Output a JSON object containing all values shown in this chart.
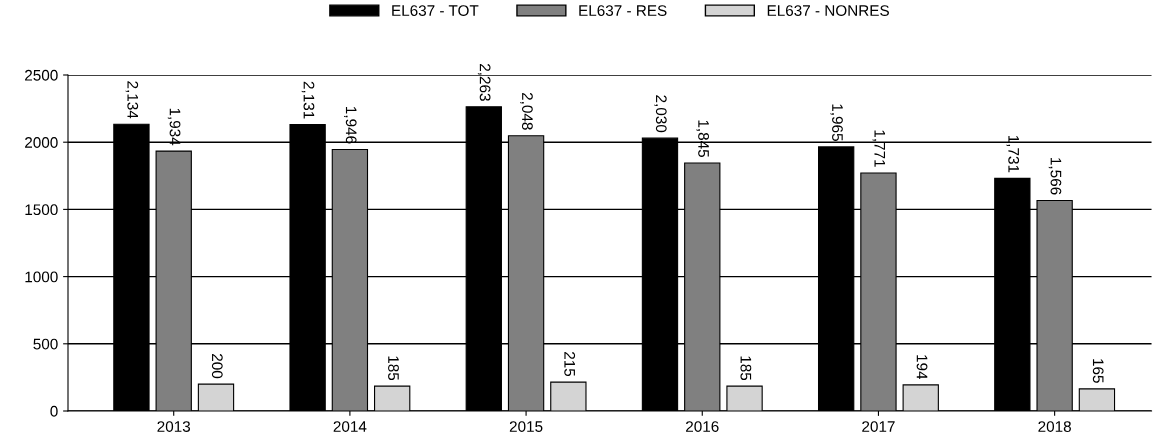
{
  "chart_data": {
    "type": "bar",
    "categories": [
      "2013",
      "2014",
      "2015",
      "2016",
      "2017",
      "2018"
    ],
    "series": [
      {
        "name": "EL637 - TOT",
        "color": "#000000",
        "values": [
          2134,
          2131,
          2263,
          2030,
          1965,
          1731
        ],
        "value_labels": [
          "2,134",
          "2,131",
          "2,263",
          "2,030",
          "1,965",
          "1,731"
        ]
      },
      {
        "name": "EL637 - RES",
        "color": "#808080",
        "values": [
          1934,
          1946,
          2048,
          1845,
          1771,
          1566
        ],
        "value_labels": [
          "1,934",
          "1,946",
          "2,048",
          "1,845",
          "1,771",
          "1,566"
        ]
      },
      {
        "name": "EL637 - NONRES",
        "color": "#d4d4d4",
        "values": [
          200,
          185,
          215,
          185,
          194,
          165
        ],
        "value_labels": [
          "200",
          "185",
          "215",
          "185",
          "194",
          "165"
        ]
      }
    ],
    "ylim": [
      0,
      2500
    ],
    "yticks": [
      0,
      500,
      1000,
      1500,
      2000,
      2500
    ],
    "grid": "y",
    "legend": "top"
  }
}
